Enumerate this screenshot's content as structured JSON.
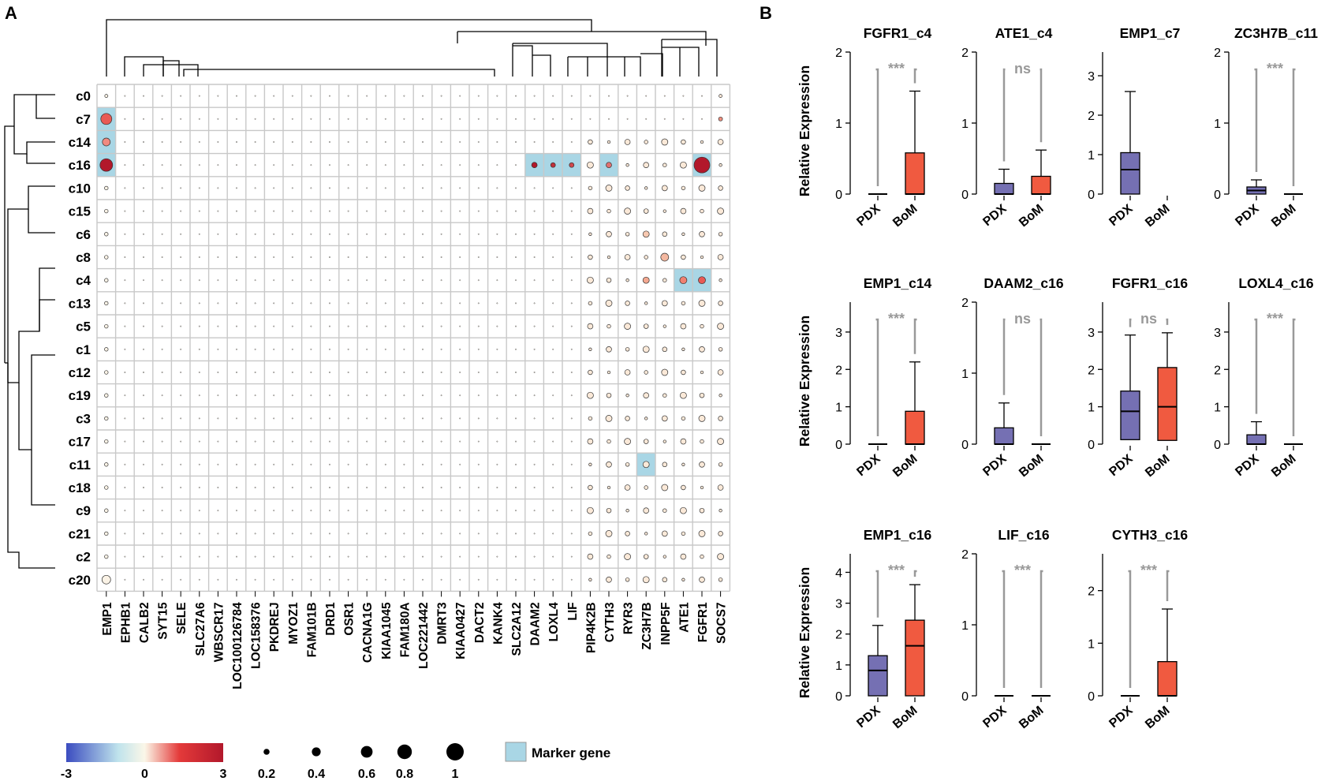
{
  "panel_a": {
    "label": "A",
    "genes": [
      "EMP1",
      "EPHB1",
      "CALB2",
      "SYT15",
      "SELE",
      "SLC27A6",
      "WBSCR17",
      "LOC100126784",
      "LOC158376",
      "PKDREJ",
      "MYOZ1",
      "FAM101B",
      "DRD1",
      "OSR1",
      "CACNA1G",
      "KIAA1045",
      "FAM180A",
      "LOC221442",
      "DMRT3",
      "KIAA0427",
      "DACT2",
      "KANK4",
      "SLC2A12",
      "DAAM2",
      "LOXL4",
      "LIF",
      "PIP4K2B",
      "CYTH3",
      "RYR3",
      "ZC3H7B",
      "INPP5F",
      "ATE1",
      "FGFR1",
      "SOCS7"
    ],
    "clusters": [
      "c0",
      "c7",
      "c14",
      "c16",
      "c10",
      "c15",
      "c6",
      "c8",
      "c4",
      "c13",
      "c5",
      "c1",
      "c12",
      "c19",
      "c3",
      "c17",
      "c11",
      "c18",
      "c9",
      "c21",
      "c2",
      "c20"
    ],
    "marker_cells": [
      [
        1,
        0
      ],
      [
        2,
        0
      ],
      [
        3,
        0
      ],
      [
        3,
        23
      ],
      [
        3,
        24
      ],
      [
        3,
        25
      ],
      [
        3,
        27
      ],
      [
        3,
        32
      ],
      [
        8,
        31
      ],
      [
        8,
        32
      ],
      [
        16,
        29
      ]
    ],
    "legend": {
      "color_ticks": [
        "-3",
        "0",
        "3"
      ],
      "size_ticks": [
        "0.2",
        "0.4",
        "0.6",
        "0.8",
        "1"
      ],
      "size_values": [
        0.2,
        0.4,
        0.6,
        0.8,
        1
      ],
      "marker_label": "Marker gene",
      "marker_color": "#a9d6e5"
    },
    "colors": {
      "low": "#3b4cc0",
      "mid": "#fbf7e8",
      "high": "#b2182b",
      "grid": "#c8c8c8"
    }
  },
  "panel_b": {
    "label": "B",
    "y_label": "Relative Expression",
    "group_labels": [
      "PDX",
      "BoM"
    ],
    "colors": {
      "PDX": "#7570b3",
      "BoM": "#f05a40",
      "sig": "#999999"
    },
    "plots": [
      {
        "title": "FGFR1_c4",
        "ymax": 2,
        "ticks": [
          "0",
          "1",
          "2"
        ],
        "sig": "***",
        "boxes": [
          {
            "min": 0,
            "q1": 0,
            "med": 0,
            "q3": 0,
            "max": 0
          },
          {
            "min": 0,
            "q1": 0,
            "med": 0,
            "q3": 0.58,
            "max": 1.45
          }
        ]
      },
      {
        "title": "ATE1_c4",
        "ymax": 2,
        "ticks": [
          "0",
          "1",
          "2"
        ],
        "sig": "ns",
        "boxes": [
          {
            "min": 0,
            "q1": 0,
            "med": 0,
            "q3": 0.15,
            "max": 0.35
          },
          {
            "min": 0,
            "q1": 0,
            "med": 0,
            "q3": 0.25,
            "max": 0.62
          }
        ]
      },
      {
        "title": "EMP1_c7",
        "ymax": 3.6,
        "ticks": [
          "0",
          "1",
          "2",
          "3"
        ],
        "sig": "",
        "boxes": [
          {
            "min": 0,
            "q1": 0,
            "med": 0.62,
            "q3": 1.05,
            "max": 2.6
          },
          null
        ]
      },
      {
        "title": "ZC3H7B_c11",
        "ymax": 2,
        "ticks": [
          "0",
          "1",
          "2"
        ],
        "sig": "***",
        "boxes": [
          {
            "min": 0,
            "q1": 0,
            "med": 0.05,
            "q3": 0.1,
            "max": 0.2
          },
          {
            "min": 0,
            "q1": 0,
            "med": 0,
            "q3": 0,
            "max": 0
          }
        ]
      },
      {
        "title": "EMP1_c14",
        "ymax": 3.8,
        "ticks": [
          "0",
          "1",
          "2",
          "3"
        ],
        "sig": "***",
        "boxes": [
          {
            "min": 0,
            "q1": 0,
            "med": 0,
            "q3": 0,
            "max": 0
          },
          {
            "min": 0,
            "q1": 0,
            "med": 0,
            "q3": 0.88,
            "max": 2.2
          }
        ]
      },
      {
        "title": "DAAM2_c16",
        "ymax": 2,
        "ticks": [
          "0",
          "1",
          "2"
        ],
        "sig": "ns",
        "boxes": [
          {
            "min": 0,
            "q1": 0,
            "med": 0,
            "q3": 0.23,
            "max": 0.58
          },
          {
            "min": 0,
            "q1": 0,
            "med": 0,
            "q3": 0,
            "max": 0
          }
        ]
      },
      {
        "title": "FGFR1_c16",
        "ymax": 3.8,
        "ticks": [
          "0",
          "1",
          "2",
          "3"
        ],
        "sig": "ns",
        "boxes": [
          {
            "min": 0,
            "q1": 0.12,
            "med": 0.88,
            "q3": 1.42,
            "max": 2.92
          },
          {
            "min": 0,
            "q1": 0.1,
            "med": 1,
            "q3": 2.05,
            "max": 2.98
          }
        ]
      },
      {
        "title": "LOXL4_c16",
        "ymax": 3.8,
        "ticks": [
          "0",
          "1",
          "2",
          "3"
        ],
        "sig": "***",
        "boxes": [
          {
            "min": 0,
            "q1": 0,
            "med": 0,
            "q3": 0.25,
            "max": 0.6
          },
          {
            "min": 0,
            "q1": 0,
            "med": 0,
            "q3": 0,
            "max": 0
          }
        ]
      },
      {
        "title": "EMP1_c16",
        "ymax": 4.6,
        "ticks": [
          "0",
          "1",
          "2",
          "3",
          "4"
        ],
        "sig": "***",
        "boxes": [
          {
            "min": 0,
            "q1": 0,
            "med": 0.82,
            "q3": 1.3,
            "max": 2.28
          },
          {
            "min": 0,
            "q1": 0,
            "med": 1.62,
            "q3": 2.45,
            "max": 3.6
          }
        ]
      },
      {
        "title": "LIF_c16",
        "ymax": 2,
        "ticks": [
          "0",
          "1",
          "2"
        ],
        "sig": "***",
        "boxes": [
          {
            "min": 0,
            "q1": 0,
            "med": 0,
            "q3": 0,
            "max": 0
          },
          {
            "min": 0,
            "q1": 0,
            "med": 0,
            "q3": 0,
            "max": 0
          }
        ]
      },
      {
        "title": "CYTH3_c16",
        "ymax": 2.7,
        "ticks": [
          "0",
          "1",
          "2"
        ],
        "sig": "***",
        "boxes": [
          {
            "min": 0,
            "q1": 0,
            "med": 0,
            "q3": 0,
            "max": 0
          },
          {
            "min": 0,
            "q1": 0,
            "med": 0,
            "q3": 0.65,
            "max": 1.65
          }
        ]
      }
    ]
  }
}
